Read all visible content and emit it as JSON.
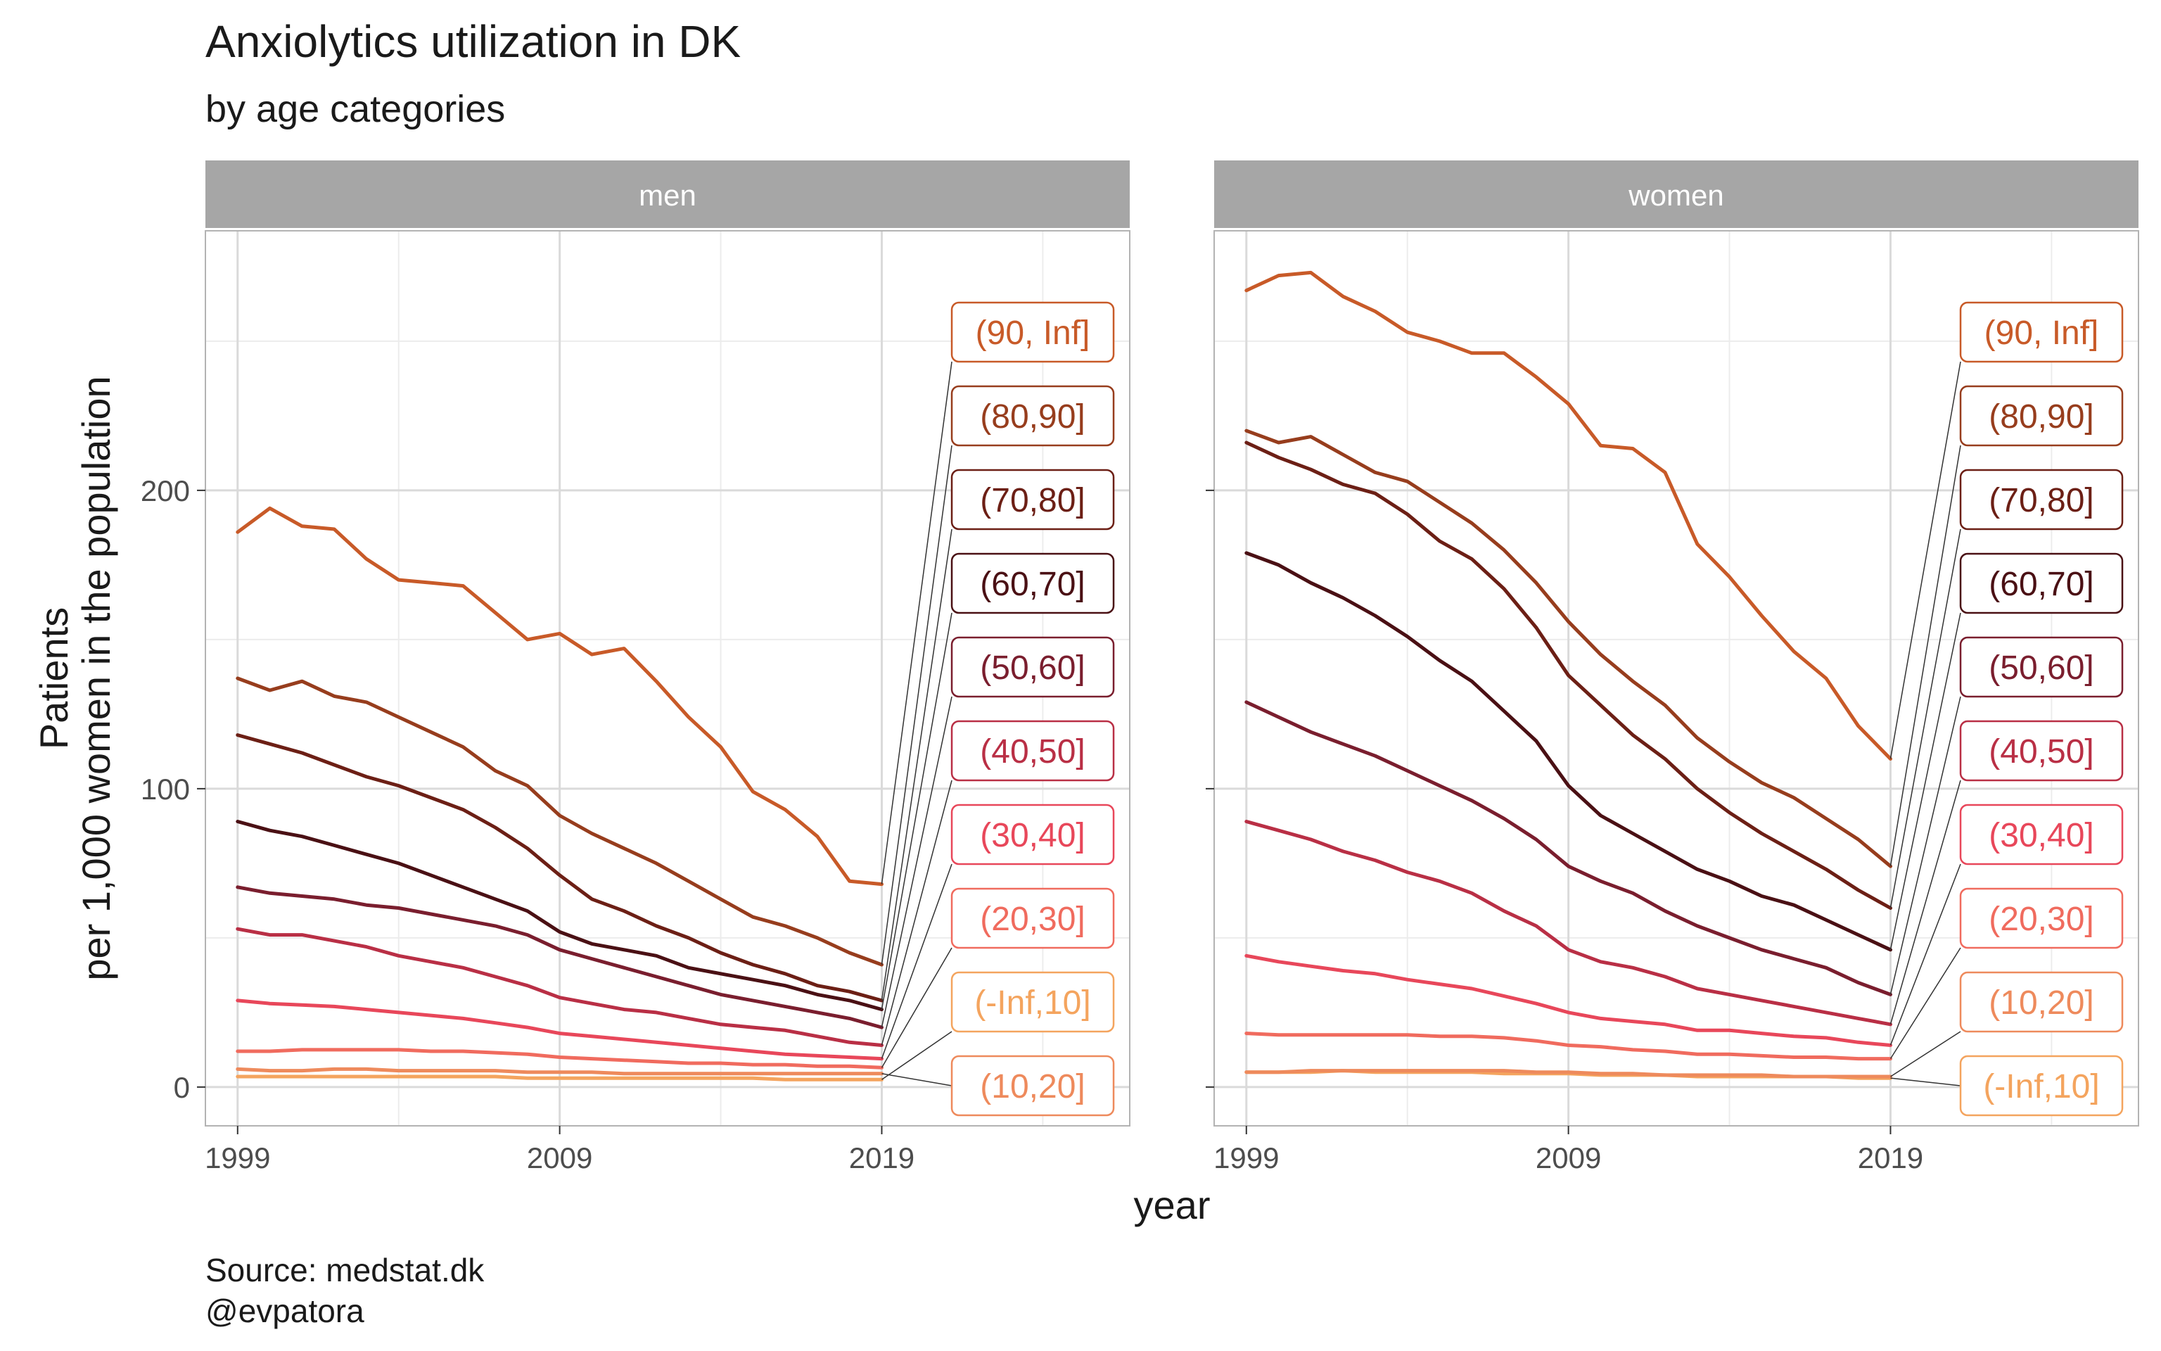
{
  "title": "Anxiolytics utilization in DK",
  "subtitle": "by age categories",
  "caption": [
    "Source: medstat.dk",
    "@evpatora"
  ],
  "chart_data": {
    "type": "line",
    "xlabel": "year",
    "ylabel": [
      "Patients",
      "per 1,000 women in the population"
    ],
    "xticks": [
      1999,
      2009,
      2019
    ],
    "yticks": [
      0,
      100,
      200
    ],
    "xlim": [
      1998,
      2026.7
    ],
    "ylim": [
      -13,
      287
    ],
    "grid": true,
    "legend": "direct labels at 2019",
    "years": [
      1999,
      2000,
      2001,
      2002,
      2003,
      2004,
      2005,
      2006,
      2007,
      2008,
      2009,
      2010,
      2011,
      2012,
      2013,
      2014,
      2015,
      2016,
      2017,
      2018,
      2019
    ],
    "colors": {
      "(-Inf,10]": "#f4a45e",
      "(10,20]": "#ee8a5c",
      "(20,30]": "#f06b5e",
      "(30,40]": "#e8475a",
      "(40,50]": "#b92f45",
      "(50,60]": "#7a1e2e",
      "(60,70]": "#4a1014",
      "(70,80]": "#6c1f15",
      "(80,90]": "#973d1d",
      "(90, Inf]": "#c85a28"
    },
    "panels": [
      {
        "name": "men",
        "series": [
          {
            "name": "(90, Inf]",
            "values": [
              186,
              194,
              188,
              187,
              177,
              170,
              169,
              168,
              159,
              150,
              152,
              145,
              147,
              136,
              124,
              114,
              99,
              93,
              84,
              69,
              68
            ]
          },
          {
            "name": "(80,90]",
            "values": [
              137,
              133,
              136,
              131,
              129,
              124,
              119,
              114,
              106,
              101,
              91,
              85,
              80,
              75,
              69,
              63,
              57,
              54,
              50,
              45,
              41
            ]
          },
          {
            "name": "(70,80]",
            "values": [
              118,
              115,
              112,
              108,
              104,
              101,
              97,
              93,
              87,
              80,
              71,
              63,
              59,
              54,
              50,
              45,
              41,
              38,
              34,
              32,
              29
            ]
          },
          {
            "name": "(60,70]",
            "values": [
              89,
              86,
              84,
              81,
              78,
              75,
              71,
              67,
              63,
              59,
              52,
              48,
              46,
              44,
              40,
              38,
              36,
              34,
              31,
              29,
              26
            ]
          },
          {
            "name": "(50,60]",
            "values": [
              67,
              65,
              64,
              63,
              61,
              60,
              58,
              56,
              54,
              51,
              46,
              43,
              40,
              37,
              34,
              31,
              29,
              27,
              25,
              23,
              20
            ]
          },
          {
            "name": "(40,50]",
            "values": [
              53,
              51,
              51,
              49,
              47,
              44,
              42,
              40,
              37,
              34,
              30,
              28,
              26,
              25,
              23,
              21,
              20,
              19,
              17,
              15,
              14
            ]
          },
          {
            "name": "(30,40]",
            "values": [
              29,
              28,
              27.5,
              27,
              26,
              25,
              24,
              23,
              21.5,
              20,
              18,
              17,
              16,
              15,
              14,
              13,
              12,
              11,
              10.5,
              10,
              9.5
            ]
          },
          {
            "name": "(20,30]",
            "values": [
              12,
              12,
              12.5,
              12.5,
              12.5,
              12.5,
              12,
              12,
              11.5,
              11,
              10,
              9.5,
              9,
              8.5,
              8,
              8,
              7.5,
              7.5,
              7,
              7,
              6.5
            ]
          },
          {
            "name": "(10,20]",
            "values": [
              6,
              5.5,
              5.5,
              6,
              6,
              5.5,
              5.5,
              5.5,
              5.5,
              5,
              5,
              5,
              4.5,
              4.5,
              4.5,
              4.5,
              4.5,
              4.5,
              4.5,
              4.5,
              4.5
            ]
          },
          {
            "name": "(-Inf,10]",
            "values": [
              3.5,
              3.5,
              3.5,
              3.5,
              3.5,
              3.5,
              3.5,
              3.5,
              3.5,
              3,
              3,
              3,
              3,
              3,
              3,
              3,
              3,
              2.5,
              2.5,
              2.5,
              2.5
            ]
          }
        ]
      },
      {
        "name": "women",
        "series": [
          {
            "name": "(90, Inf]",
            "values": [
              267,
              272,
              273,
              265,
              260,
              253,
              250,
              246,
              246,
              238,
              229,
              215,
              214,
              206,
              182,
              171,
              158,
              146,
              137,
              121,
              110
            ]
          },
          {
            "name": "(80,90]",
            "values": [
              220,
              216,
              218,
              212,
              206,
              203,
              196,
              189,
              180,
              169,
              156,
              145,
              136,
              128,
              117,
              109,
              102,
              97,
              90,
              83,
              74
            ]
          },
          {
            "name": "(70,80]",
            "values": [
              216,
              211,
              207,
              202,
              199,
              192,
              183,
              177,
              167,
              154,
              138,
              128,
              118,
              110,
              100,
              92,
              85,
              79,
              73,
              66,
              60
            ]
          },
          {
            "name": "(60,70]",
            "values": [
              179,
              175,
              169,
              164,
              158,
              151,
              143,
              136,
              126,
              116,
              101,
              91,
              85,
              79,
              73,
              69,
              64,
              61,
              56,
              51,
              46
            ]
          },
          {
            "name": "(50,60]",
            "values": [
              129,
              124,
              119,
              115,
              111,
              106,
              101,
              96,
              90,
              83,
              74,
              69,
              65,
              59,
              54,
              50,
              46,
              43,
              40,
              35,
              31
            ]
          },
          {
            "name": "(40,50]",
            "values": [
              89,
              86,
              83,
              79,
              76,
              72,
              69,
              65,
              59,
              54,
              46,
              42,
              40,
              37,
              33,
              31,
              29,
              27,
              25,
              23,
              21
            ]
          },
          {
            "name": "(30,40]",
            "values": [
              44,
              42,
              40.5,
              39,
              38,
              36,
              34.5,
              33,
              30.5,
              28,
              25,
              23,
              22,
              21,
              19,
              19,
              18,
              17,
              16.5,
              15,
              14
            ]
          },
          {
            "name": "(20,30]",
            "values": [
              18,
              17.5,
              17.5,
              17.5,
              17.5,
              17.5,
              17,
              17,
              16.5,
              15.5,
              14,
              13.5,
              12.5,
              12,
              11,
              11,
              10.5,
              10,
              10,
              9.5,
              9.5
            ]
          },
          {
            "name": "(10,20]",
            "values": [
              5,
              5,
              5.5,
              5.5,
              5.5,
              5.5,
              5.5,
              5.5,
              5.5,
              5,
              5,
              4.5,
              4.5,
              4,
              4,
              4,
              4,
              3.5,
              3.5,
              3.5,
              3.5
            ]
          },
          {
            "name": "(-Inf,10]",
            "values": [
              5,
              5,
              5,
              5.5,
              5,
              5,
              5,
              5,
              4.5,
              4.5,
              4.5,
              4,
              4,
              4,
              3.5,
              3.5,
              3.5,
              3.5,
              3.5,
              3,
              3
            ]
          }
        ]
      }
    ]
  }
}
